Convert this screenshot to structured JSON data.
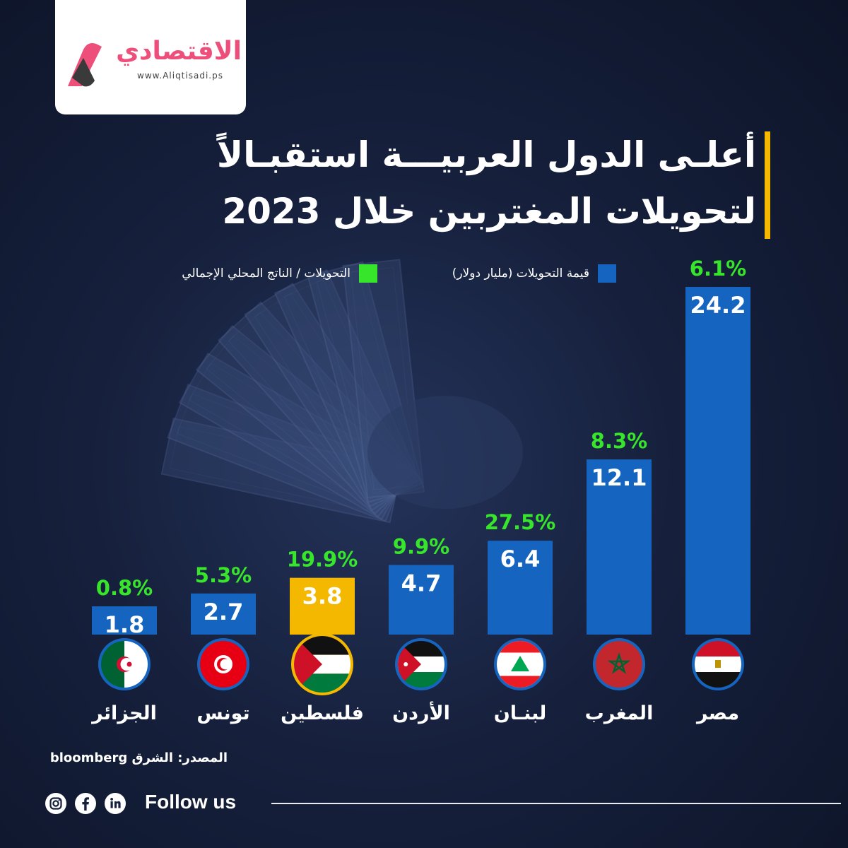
{
  "brand": {
    "name": "الاقتصادي",
    "url": "www.Aliqtisadi.ps"
  },
  "title": {
    "line1": "أعلـى الدول العربيـــة استقبـالاً",
    "line2": "لتحويلات المغتربين خلال 2023"
  },
  "legend": {
    "remittance_value": "قيمة التحويلات (مليار دولار)",
    "remittance_gdp": "التحويلات / الناتج المحلي الإجمالي"
  },
  "colors": {
    "bar": "#1565c0",
    "bar_highlight": "#f5b800",
    "percent_text": "#37e52b",
    "title_accent": "#f5b800",
    "logo_pink": "#ee4e7a"
  },
  "chart_data": {
    "type": "bar",
    "title": "أعلـى الدول العربيـــة استقبـالاً لتحويلات المغتربين خلال 2023",
    "categories": [
      "مصر",
      "المغرب",
      "لبنـان",
      "الأردن",
      "فلسطين",
      "تونس",
      "الجزائر"
    ],
    "series": [
      {
        "name": "قيمة التحويلات (مليار دولار)",
        "values": [
          24.2,
          12.1,
          6.4,
          4.7,
          3.8,
          2.7,
          1.8
        ]
      },
      {
        "name": "التحويلات / الناتج المحلي الإجمالي",
        "values": [
          6.1,
          8.3,
          27.5,
          9.9,
          19.9,
          5.3,
          0.8
        ]
      }
    ],
    "value_labels": [
      "24.2",
      "12.1",
      "6.4",
      "4.7",
      "3.8",
      "2.7",
      "1.8"
    ],
    "percent_labels": [
      "6.1%",
      "8.3%",
      "27.5%",
      "9.9%",
      "19.9%",
      "5.3%",
      "0.8%"
    ],
    "flags": [
      "egypt-flag-icon",
      "morocco-flag-icon",
      "lebanon-flag-icon",
      "jordan-flag-icon",
      "palestine-flag-icon",
      "tunisia-flag-icon",
      "algeria-flag-icon"
    ],
    "highlighted_category": "فلسطين",
    "legend_position": "top",
    "grid": false
  },
  "source": "المصدر: الشرق bloomberg",
  "footer": {
    "follow": "Follow us",
    "icons": [
      "instagram-icon",
      "facebook-icon",
      "linkedin-icon"
    ]
  }
}
